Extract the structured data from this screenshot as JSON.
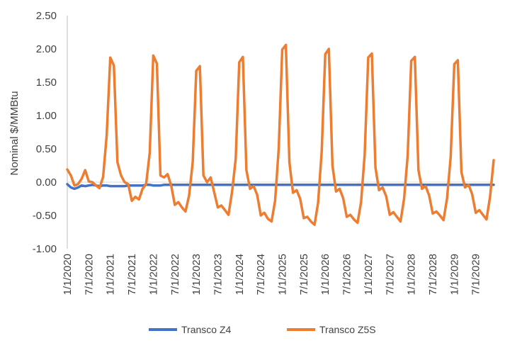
{
  "chart_data": {
    "type": "line",
    "title": "",
    "xlabel": "",
    "ylabel": "Nominal $/MMBtu",
    "ylim": [
      -1.0,
      2.5
    ],
    "yticks": [
      "2.50",
      "2.00",
      "1.50",
      "1.00",
      "0.50",
      "0.00",
      "-0.50",
      "-1.00"
    ],
    "ytick_values": [
      2.5,
      2.0,
      1.5,
      1.0,
      0.5,
      0.0,
      -0.5,
      -1.0
    ],
    "xticks": [
      "1/1/2020",
      "7/1/2020",
      "1/1/2021",
      "7/1/2021",
      "1/1/2022",
      "7/1/2022",
      "1/1/2023",
      "7/1/2023",
      "1/1/2024",
      "7/1/2024",
      "1/1/2025",
      "7/1/2025",
      "1/1/2026",
      "7/1/2026",
      "1/1/2027",
      "7/1/2027",
      "1/1/2028",
      "7/1/2028",
      "1/1/2029",
      "7/1/2029"
    ],
    "x_start": "1/1/2020",
    "x_frequency": "monthly",
    "grid": false,
    "legend_position": "bottom",
    "series": [
      {
        "name": "Transco Z4",
        "color": "#4472C4",
        "values": [
          -0.03,
          -0.08,
          -0.1,
          -0.08,
          -0.05,
          -0.06,
          -0.05,
          -0.04,
          -0.05,
          -0.06,
          -0.05,
          -0.05,
          -0.06,
          -0.06,
          -0.06,
          -0.06,
          -0.06,
          -0.05,
          -0.05,
          -0.05,
          -0.05,
          -0.05,
          -0.04,
          -0.04,
          -0.05,
          -0.05,
          -0.05,
          -0.04,
          -0.04,
          -0.04,
          -0.04,
          -0.04,
          -0.04,
          -0.04,
          -0.04,
          -0.04,
          -0.04,
          -0.04,
          -0.04,
          -0.04,
          -0.04,
          -0.04,
          -0.04,
          -0.04,
          -0.04,
          -0.04,
          -0.04,
          -0.04,
          -0.04,
          -0.04,
          -0.04,
          -0.04,
          -0.04,
          -0.04,
          -0.04,
          -0.04,
          -0.04,
          -0.04,
          -0.04,
          -0.04,
          -0.04,
          -0.04,
          -0.04,
          -0.04,
          -0.04,
          -0.04,
          -0.04,
          -0.04,
          -0.04,
          -0.04,
          -0.04,
          -0.04,
          -0.04,
          -0.04,
          -0.04,
          -0.04,
          -0.04,
          -0.04,
          -0.04,
          -0.04,
          -0.04,
          -0.04,
          -0.04,
          -0.04,
          -0.04,
          -0.04,
          -0.04,
          -0.04,
          -0.04,
          -0.04,
          -0.04,
          -0.04,
          -0.04,
          -0.04,
          -0.04,
          -0.04,
          -0.04,
          -0.04,
          -0.04,
          -0.04,
          -0.04,
          -0.04,
          -0.04,
          -0.04,
          -0.04,
          -0.04,
          -0.04,
          -0.04,
          -0.04,
          -0.04,
          -0.04,
          -0.04,
          -0.04,
          -0.04,
          -0.04,
          -0.04,
          -0.04,
          -0.04,
          -0.04,
          -0.04
        ]
      },
      {
        "name": "Transco Z5S",
        "color": "#ED7D31",
        "values": [
          0.19,
          0.1,
          -0.05,
          -0.03,
          0.05,
          0.18,
          0.01,
          0.0,
          -0.05,
          -0.09,
          0.08,
          0.7,
          1.87,
          1.75,
          0.3,
          0.1,
          0.0,
          -0.03,
          -0.28,
          -0.22,
          -0.26,
          -0.1,
          -0.03,
          0.44,
          1.9,
          1.78,
          0.1,
          0.07,
          0.12,
          -0.05,
          -0.34,
          -0.3,
          -0.38,
          -0.44,
          -0.2,
          0.3,
          1.67,
          1.74,
          0.1,
          0.0,
          0.07,
          -0.15,
          -0.38,
          -0.35,
          -0.42,
          -0.49,
          -0.14,
          0.35,
          1.8,
          1.88,
          0.18,
          -0.1,
          -0.06,
          -0.19,
          -0.5,
          -0.46,
          -0.55,
          -0.59,
          -0.28,
          0.5,
          1.99,
          2.06,
          0.3,
          -0.16,
          -0.12,
          -0.25,
          -0.54,
          -0.52,
          -0.59,
          -0.64,
          -0.31,
          0.46,
          1.92,
          2.0,
          0.25,
          -0.14,
          -0.1,
          -0.24,
          -0.52,
          -0.49,
          -0.56,
          -0.61,
          -0.3,
          0.42,
          1.87,
          1.93,
          0.22,
          -0.12,
          -0.08,
          -0.21,
          -0.49,
          -0.45,
          -0.52,
          -0.59,
          -0.25,
          0.4,
          1.82,
          1.88,
          0.18,
          -0.1,
          -0.06,
          -0.2,
          -0.47,
          -0.44,
          -0.5,
          -0.57,
          -0.24,
          0.38,
          1.77,
          1.83,
          0.15,
          -0.08,
          -0.04,
          -0.18,
          -0.46,
          -0.42,
          -0.49,
          -0.56,
          -0.22,
          0.33
        ]
      }
    ]
  }
}
